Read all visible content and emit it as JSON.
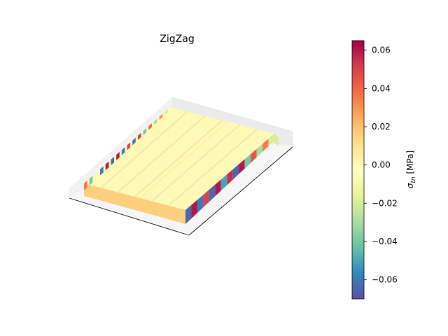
{
  "chart_data": {
    "type": "3d-bar",
    "title": "ZigZag",
    "colorbar": {
      "label": "σ_tn [MPa]",
      "label_symbol": "σ",
      "label_subscript": "tn",
      "label_unit": "[MPa]",
      "min": -0.07,
      "max": 0.065,
      "ticks": [
        -0.06,
        -0.04,
        -0.02,
        0.0,
        0.02,
        0.04,
        0.06
      ],
      "tick_labels": [
        "−0.06",
        "−0.04",
        "−0.02",
        "0.00",
        "0.02",
        "0.04",
        "0.06"
      ],
      "colormap": "Spectral_r",
      "stops": [
        "#5e4fa2",
        "#3288bd",
        "#66c2a5",
        "#abdda4",
        "#e6f598",
        "#ffffbf",
        "#fee08b",
        "#fdae61",
        "#f46d43",
        "#d53e4f",
        "#9e0142"
      ]
    },
    "panes": "visible",
    "axes_ticks": "hidden",
    "top_surface_value": 0.0,
    "edge_values_front": [
      -0.065,
      0.06,
      -0.06,
      0.05,
      -0.065,
      0.06,
      -0.05,
      0.055,
      -0.065,
      0.06,
      -0.04,
      0.045,
      -0.03,
      0.035,
      -0.02
    ],
    "edge_values_left": [
      0.035,
      -0.04,
      0.0,
      -0.06,
      0.06,
      -0.065,
      0.06,
      -0.06,
      0.05,
      -0.06,
      0.05,
      -0.04,
      0.04,
      -0.03,
      0.03,
      -0.02
    ]
  }
}
